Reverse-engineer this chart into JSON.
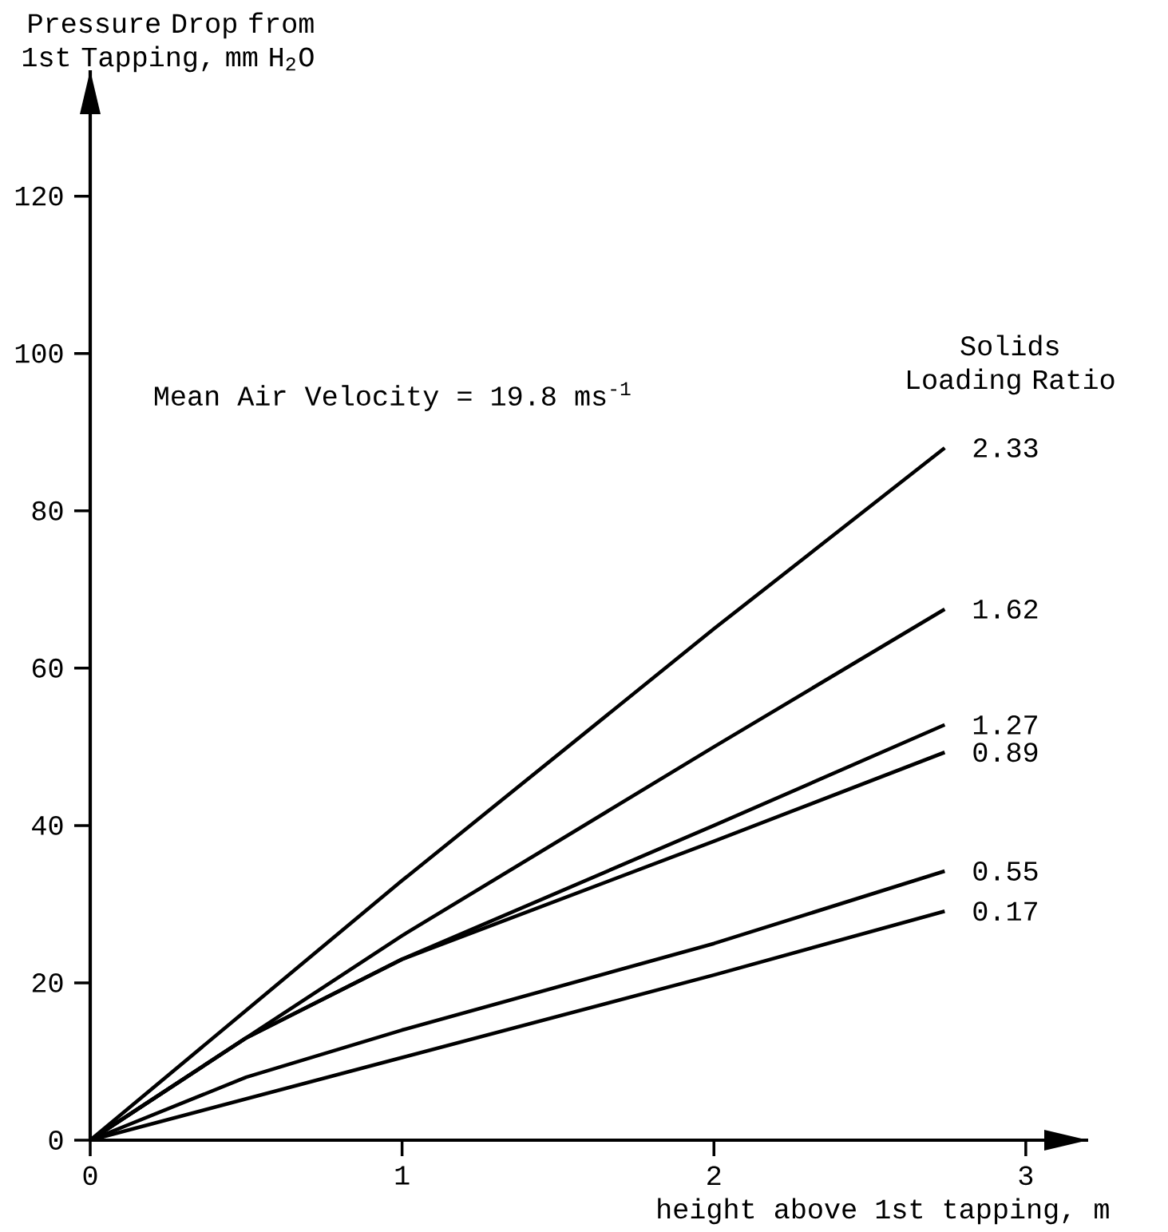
{
  "chart_data": {
    "type": "line",
    "xlabel": "height above 1st tapping, m",
    "ylabel": "Pressure Drop from 1st Tapping, mm H$_{2}$O",
    "legend_title": "Solids Loading Ratio",
    "annotations": [
      "Mean Air Velocity = 19.8 ms$^{-1}$"
    ],
    "xlim": [
      0,
      3.2
    ],
    "ylim": [
      0,
      136
    ],
    "xticks": [
      0,
      1,
      2,
      3
    ],
    "yticks": [
      0,
      20,
      40,
      60,
      80,
      100,
      120
    ],
    "grid": false,
    "marker": "none",
    "line_style": "solid",
    "series": [
      {
        "name": "2.33",
        "color": "#000000",
        "x": [
          0,
          1,
          2,
          2.74
        ],
        "values": [
          0,
          33,
          65,
          88
        ]
      },
      {
        "name": "1.62",
        "color": "#000000",
        "x": [
          0,
          1,
          2,
          2.74
        ],
        "values": [
          0,
          26,
          50,
          67.5
        ]
      },
      {
        "name": "1.27",
        "color": "#000000",
        "x": [
          0,
          0.5,
          1,
          2,
          2.74
        ],
        "values": [
          0,
          13,
          23,
          40,
          52.8
        ]
      },
      {
        "name": "0.89",
        "color": "#000000",
        "x": [
          0,
          0.5,
          1,
          2,
          2.74
        ],
        "values": [
          0,
          13,
          23,
          38,
          49.3
        ]
      },
      {
        "name": "0.55",
        "color": "#000000",
        "x": [
          0,
          0.5,
          1,
          2,
          2.74
        ],
        "values": [
          0,
          8,
          14,
          25,
          34.2
        ]
      },
      {
        "name": "0.17",
        "color": "#000000",
        "x": [
          0,
          1,
          2,
          2.74
        ],
        "values": [
          0,
          10.5,
          21,
          29.1
        ]
      }
    ]
  }
}
